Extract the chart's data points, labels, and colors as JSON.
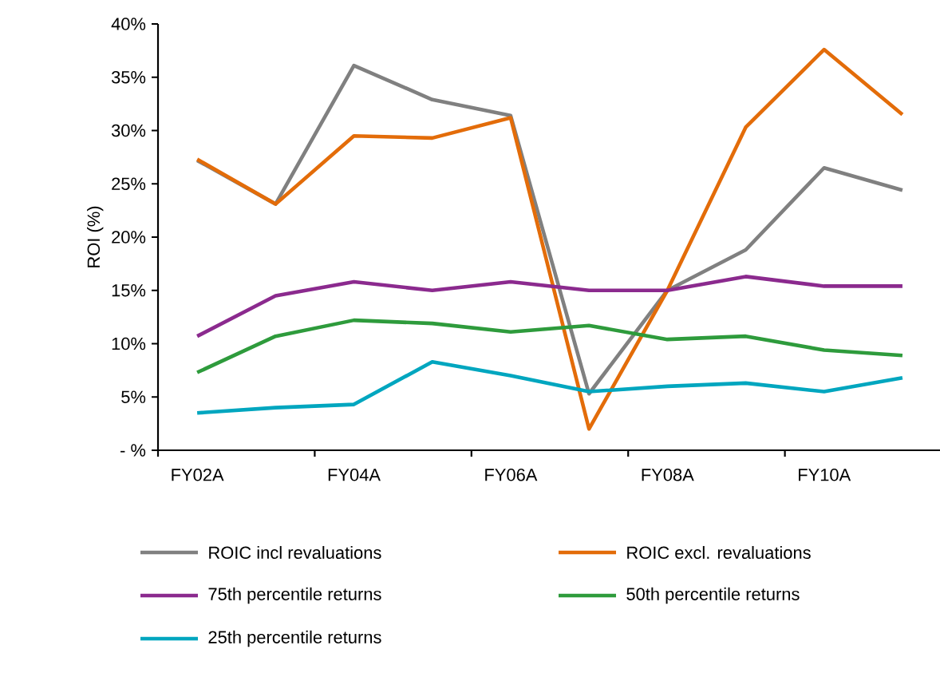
{
  "chart_data": {
    "type": "line",
    "ylabel": "ROI (%)",
    "categories": [
      "FY02A",
      null,
      "FY04A",
      null,
      "FY06A",
      null,
      "FY08A",
      null,
      "FY10A",
      null
    ],
    "ylim": [
      0,
      40
    ],
    "yticks": [
      {
        "value": 0,
        "label": "- %"
      },
      {
        "value": 5,
        "label": "5%"
      },
      {
        "value": 10,
        "label": "10%"
      },
      {
        "value": 15,
        "label": "15%"
      },
      {
        "value": 20,
        "label": "20%"
      },
      {
        "value": 25,
        "label": "25%"
      },
      {
        "value": 30,
        "label": "30%"
      },
      {
        "value": 35,
        "label": "35%"
      },
      {
        "value": 40,
        "label": "40%"
      }
    ],
    "legend": "bottom",
    "marker": "none",
    "line_style": "solid",
    "series": [
      {
        "name": "ROIC incl revaluations",
        "color": "#808080",
        "values": [
          27.2,
          23.1,
          36.1,
          32.9,
          31.4,
          5.3,
          15.0,
          18.8,
          26.5,
          24.4
        ]
      },
      {
        "name": "ROIC excl. revaluations",
        "color": "#e36c09",
        "values": [
          27.3,
          23.1,
          29.5,
          29.3,
          31.2,
          2.0,
          15.0,
          30.3,
          37.6,
          31.5
        ]
      },
      {
        "name": "75th percentile returns",
        "color": "#8b2a8e",
        "values": [
          10.7,
          14.5,
          15.8,
          15.0,
          15.8,
          15.0,
          15.0,
          16.3,
          15.4,
          15.4
        ]
      },
      {
        "name": "50th percentile returns",
        "color": "#2e9b3c",
        "values": [
          7.3,
          10.7,
          12.2,
          11.9,
          11.1,
          11.7,
          10.4,
          10.7,
          9.4,
          8.9
        ]
      },
      {
        "name": "25th percentile returns",
        "color": "#00a6bf",
        "values": [
          3.5,
          4.0,
          4.3,
          8.3,
          7.0,
          5.5,
          6.0,
          6.3,
          5.5,
          6.8
        ]
      }
    ]
  }
}
